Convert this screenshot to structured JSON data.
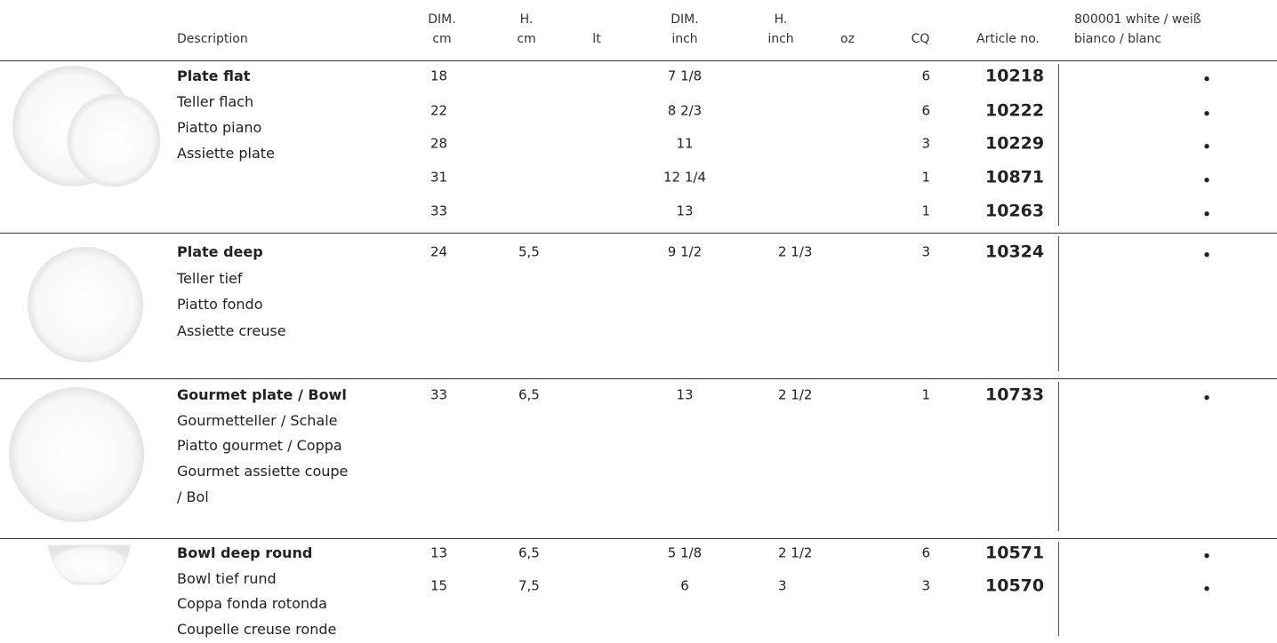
{
  "header": {
    "description": "Description",
    "dim_cm": [
      "DIM.",
      "cm"
    ],
    "h_cm": [
      "H.",
      "cm"
    ],
    "lt": "lt",
    "dim_inch": [
      "DIM.",
      "inch"
    ],
    "h_inch": [
      "H.",
      "inch"
    ],
    "oz": "oz",
    "cq": "CQ",
    "article": "Article no.",
    "white": [
      "800001 white / weiß",
      "bianco / blanc"
    ]
  },
  "groups": [
    {
      "names": [
        "Plate flat",
        "Teller flach",
        "Piatto piano",
        "Assiette plate"
      ],
      "rows": [
        {
          "dim_cm": "18",
          "dim_inch": "7 1/8",
          "cq": "6",
          "article": "10218",
          "white": "•"
        },
        {
          "dim_cm": "22",
          "dim_inch": "8 2/3",
          "cq": "6",
          "article": "10222",
          "white": "•"
        },
        {
          "dim_cm": "28",
          "dim_inch": "11",
          "cq": "3",
          "article": "10229",
          "white": "•"
        },
        {
          "dim_cm": "31",
          "dim_inch": "12 1/4",
          "cq": "1",
          "article": "10871",
          "white": "•"
        },
        {
          "dim_cm": "33",
          "dim_inch": "13",
          "cq": "1",
          "article": "10263",
          "white": "•"
        }
      ]
    },
    {
      "names": [
        "Plate deep",
        "Teller tief",
        "Piatto fondo",
        "Assiette creuse"
      ],
      "rows": [
        {
          "dim_cm": "24",
          "h_cm": "5,5",
          "dim_inch": "9 1/2",
          "h_inch": "2 1/3",
          "cq": "3",
          "article": "10324",
          "white": "•"
        }
      ]
    },
    {
      "names": [
        "Gourmet plate / Bowl",
        "Gourmetteller / Schale",
        "Piatto gourmet / Coppa",
        "Gourmet assiette coupe",
        "/ Bol"
      ],
      "rows": [
        {
          "dim_cm": "33",
          "h_cm": "6,5",
          "dim_inch": "13",
          "h_inch": "2 1/2",
          "cq": "1",
          "article": "10733",
          "white": "•"
        }
      ]
    },
    {
      "names": [
        "Bowl deep round",
        "Bowl tief rund",
        "Coppa fonda rotonda",
        "Coupelle creuse ronde"
      ],
      "rows": [
        {
          "dim_cm": "13",
          "h_cm": "6,5",
          "dim_inch": "5 1/8",
          "h_inch": "2 1/2",
          "cq": "6",
          "article": "10571",
          "white": "•"
        },
        {
          "dim_cm": "15",
          "h_cm": "7,5",
          "dim_inch": "6",
          "h_inch": "3",
          "cq": "3",
          "article": "10570",
          "white": "•"
        }
      ]
    }
  ]
}
